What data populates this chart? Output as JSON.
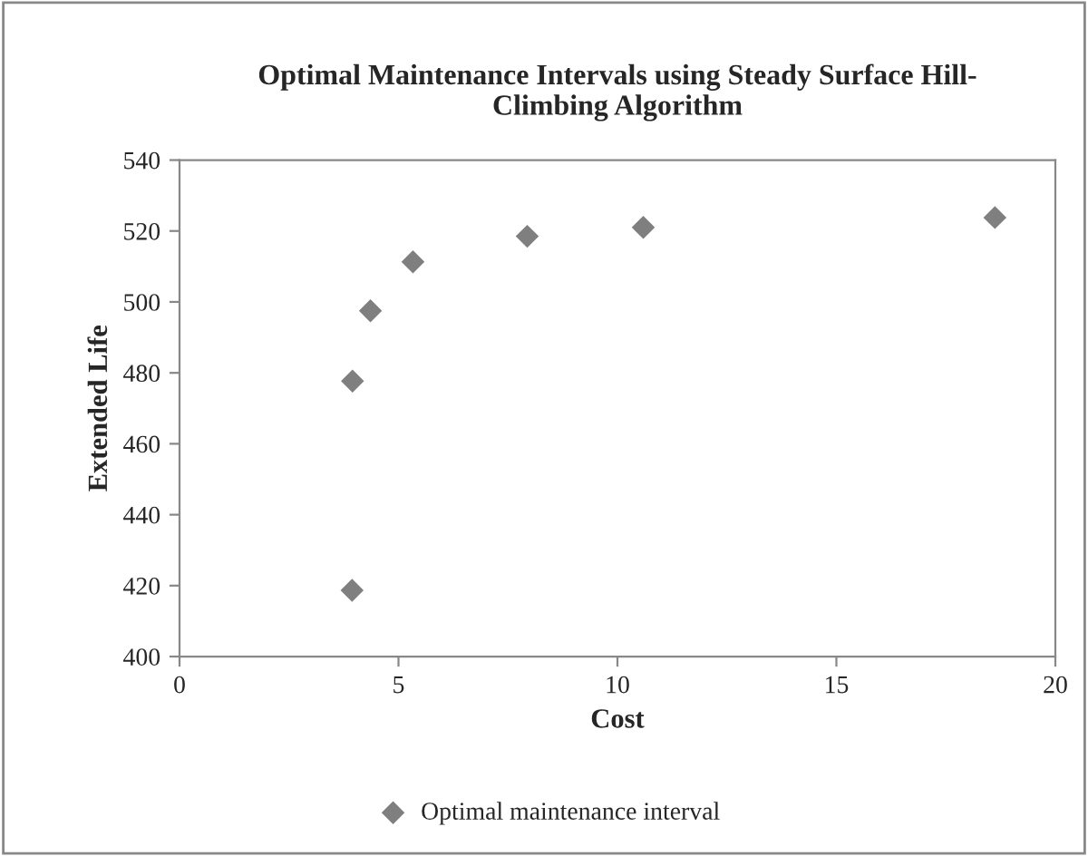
{
  "chart_data": {
    "type": "scatter",
    "title": "Optimal Maintenance Intervals using Steady Surface Hill-\nClimbing Algorithm",
    "xlabel": "Cost",
    "ylabel": "Extended Life",
    "series": [
      {
        "name": "Optimal maintenance interval",
        "color": "#7f7f7f",
        "x": [
          3.95,
          3.94,
          4.36,
          5.33,
          7.94,
          10.59,
          18.62
        ],
        "values": [
          477.7,
          418.7,
          497.5,
          511.3,
          518.5,
          521,
          523.8
        ]
      }
    ],
    "xlim": [
      0,
      20
    ],
    "xticks": [
      0,
      5,
      10,
      15,
      20
    ],
    "ylim": [
      400,
      540
    ],
    "yticks": [
      400,
      420,
      440,
      460,
      480,
      500,
      520,
      540
    ],
    "marker": "diamond",
    "grid": false,
    "legend": "bottom"
  }
}
